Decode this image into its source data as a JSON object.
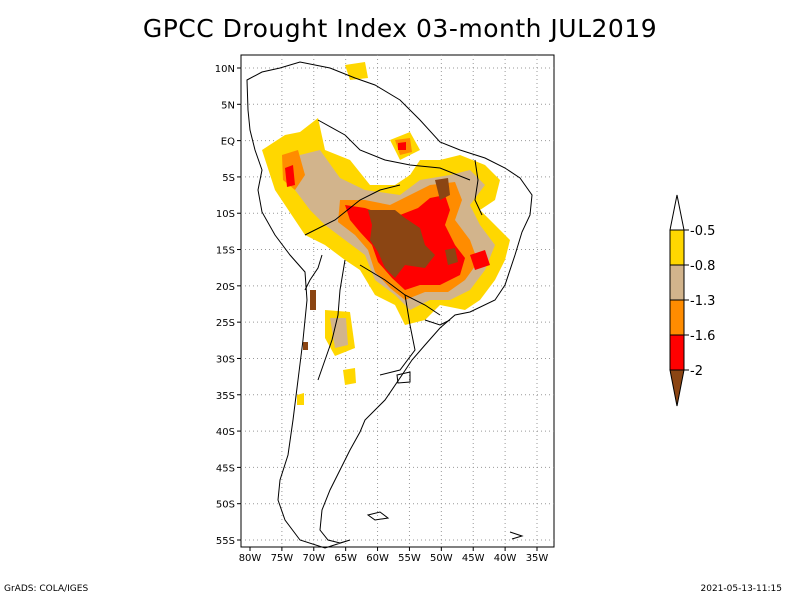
{
  "title": "GPCC Drought Index 03-month JUL2019",
  "map": {
    "lon_range": [
      -80,
      -35
    ],
    "lat_range": [
      -55,
      10
    ],
    "lon_ticks": [
      "80W",
      "75W",
      "70W",
      "65W",
      "60W",
      "55W",
      "50W",
      "45W",
      "40W",
      "35W"
    ],
    "lat_ticks": [
      "10N",
      "5N",
      "EQ",
      "5S",
      "10S",
      "15S",
      "20S",
      "25S",
      "30S",
      "35S",
      "40S",
      "45S",
      "50S",
      "55S"
    ],
    "grid": true
  },
  "legend": {
    "labels": [
      "-0.5",
      "-0.8",
      "-1.3",
      "-1.6",
      "-2"
    ],
    "colors": [
      "#ffffff",
      "#ffd700",
      "#d2b48c",
      "#ff8c00",
      "#ff0000",
      "#8b4513"
    ]
  },
  "footer": {
    "left": "GrADS: COLA/IGES",
    "right": "2021-05-13-11:15"
  }
}
